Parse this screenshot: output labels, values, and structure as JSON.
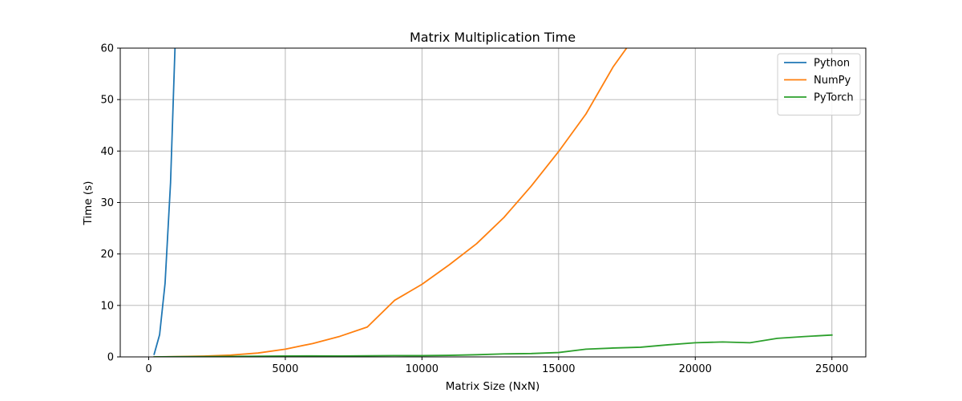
{
  "chart_data": {
    "type": "line",
    "title": "Matrix Multiplication Time",
    "xlabel": "Matrix Size (NxN)",
    "ylabel": "Time (s)",
    "xlim": [
      -1040,
      26240
    ],
    "ylim": [
      0,
      60
    ],
    "xticks": [
      0,
      5000,
      10000,
      15000,
      20000,
      25000
    ],
    "yticks": [
      0,
      10,
      20,
      30,
      40,
      50,
      60
    ],
    "grid": true,
    "legend_position": "top-right",
    "series": [
      {
        "name": "Python",
        "color": "#1f77b4",
        "x": [
          200,
          400,
          600,
          800,
          1000
        ],
        "y": [
          0.5,
          4.3,
          14.3,
          33.8,
          66.0
        ]
      },
      {
        "name": "NumPy",
        "color": "#ff7f0e",
        "x": [
          200,
          1000,
          2000,
          3000,
          4000,
          5000,
          6000,
          7000,
          8000,
          9000,
          10000,
          11000,
          12000,
          13000,
          14000,
          15000,
          16000,
          17000,
          18000
        ],
        "y": [
          0.0,
          0.05,
          0.15,
          0.35,
          0.75,
          1.5,
          2.6,
          4.0,
          5.8,
          11.0,
          14.1,
          17.9,
          22.0,
          27.1,
          33.2,
          39.9,
          47.2,
          56.4,
          63.8
        ]
      },
      {
        "name": "PyTorch",
        "color": "#2ca02c",
        "x": [
          200,
          1000,
          2000,
          3000,
          4000,
          5000,
          6000,
          7000,
          8000,
          9000,
          10000,
          11000,
          12000,
          13000,
          14000,
          15000,
          16000,
          17000,
          18000,
          19000,
          20000,
          21000,
          22000,
          23000,
          24000,
          25000
        ],
        "y": [
          0.0,
          0.03,
          0.06,
          0.1,
          0.13,
          0.17,
          0.19,
          0.18,
          0.22,
          0.25,
          0.24,
          0.3,
          0.42,
          0.58,
          0.65,
          0.85,
          1.5,
          1.72,
          1.88,
          2.35,
          2.75,
          2.9,
          2.75,
          3.6,
          3.95,
          4.25
        ]
      }
    ]
  }
}
